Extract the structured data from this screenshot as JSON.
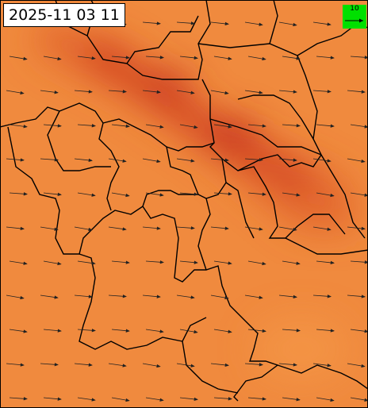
{
  "timestamp": "2025-11 03 11",
  "legend": {
    "label": "10"
  }
}
